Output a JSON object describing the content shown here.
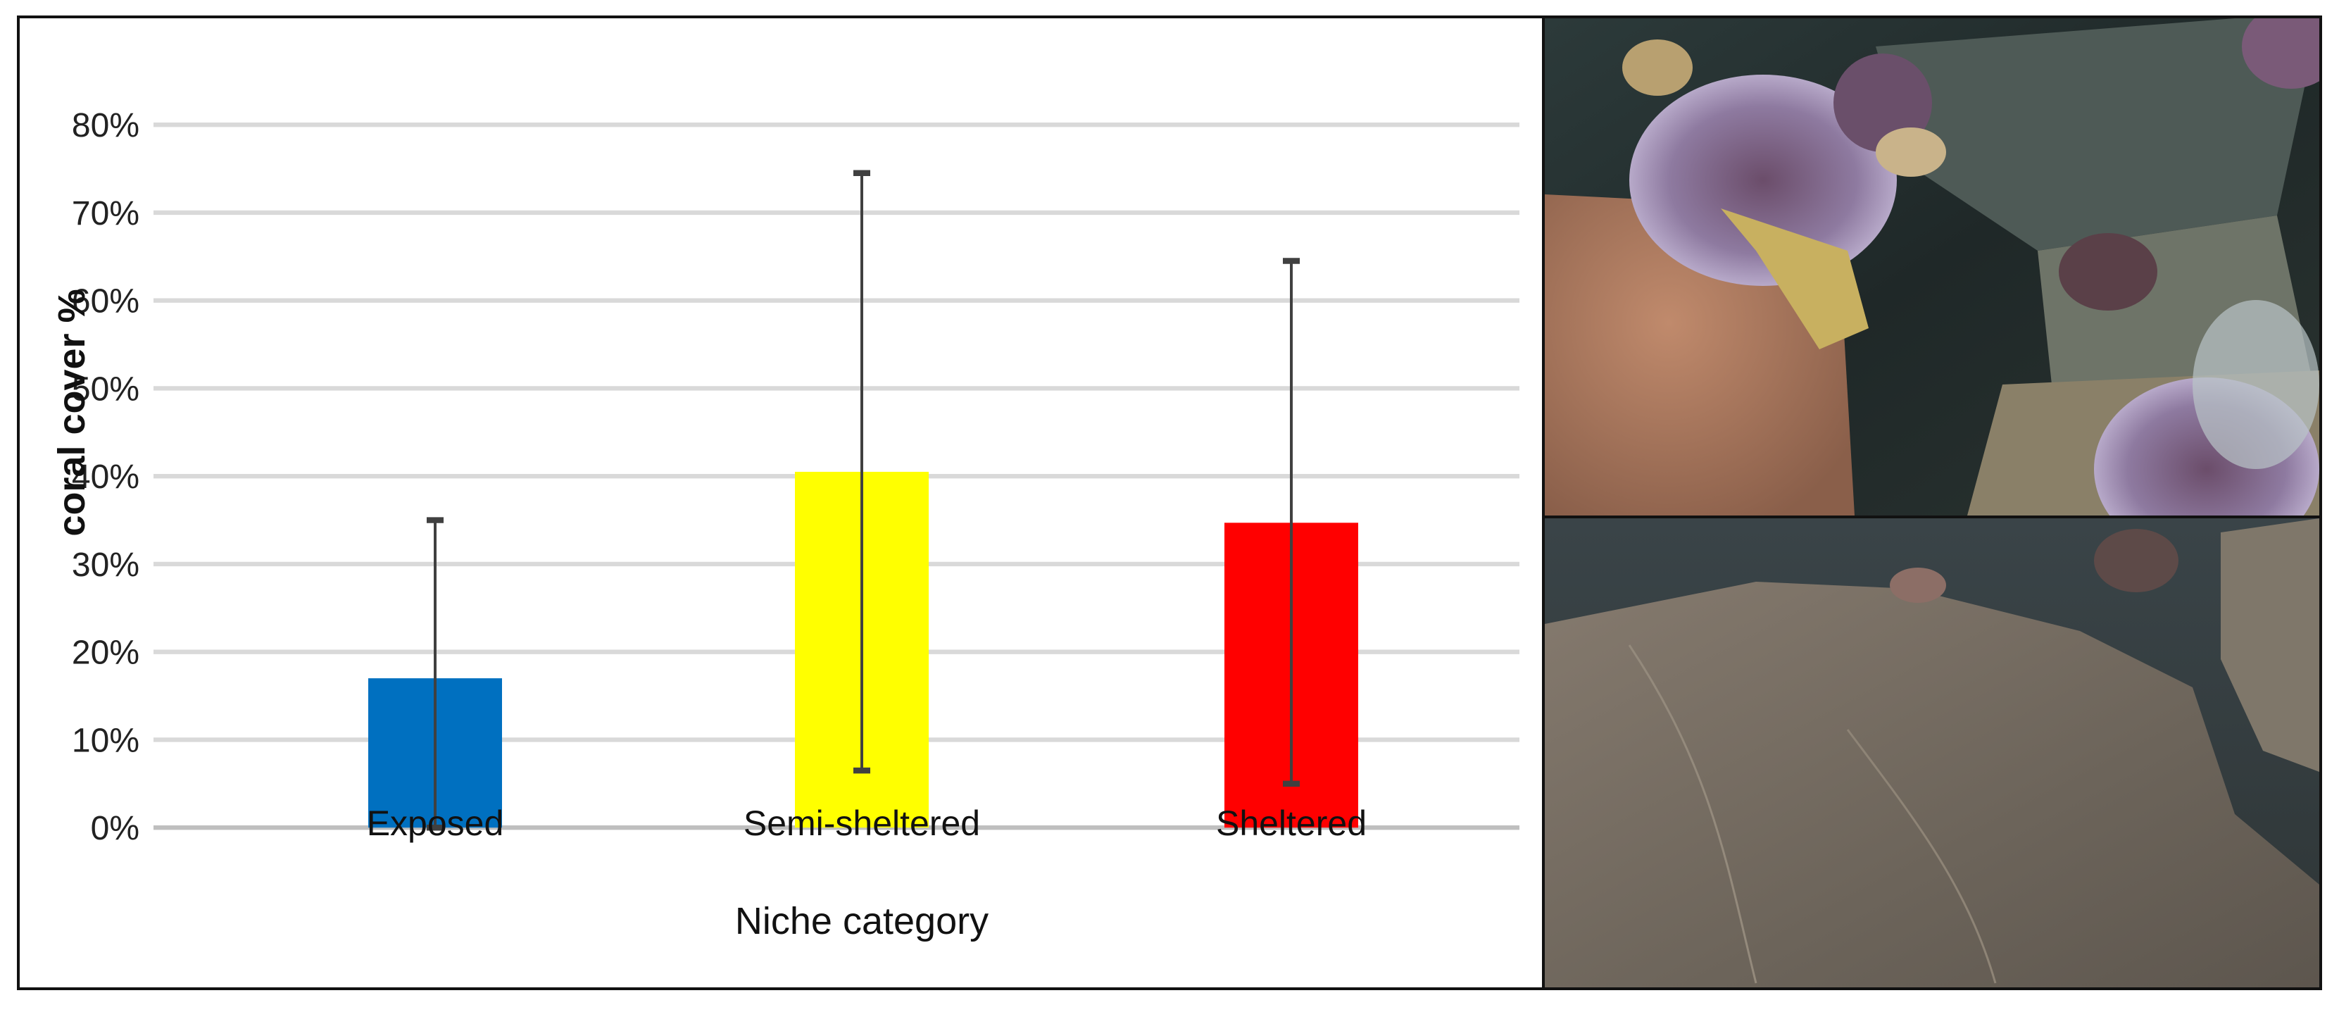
{
  "chart_data": {
    "type": "bar",
    "title": "",
    "xlabel": "Niche category",
    "ylabel": "coral cover %",
    "categories": [
      "Exposed",
      "Semi-sheltered",
      "Sheltered"
    ],
    "values": [
      0.17,
      0.405,
      0.347
    ],
    "error_low": [
      0.0,
      0.065,
      0.05
    ],
    "error_high": [
      0.35,
      0.745,
      0.645
    ],
    "colors": [
      "#0070C0",
      "#FFFF00",
      "#FF0000"
    ],
    "ylim": [
      0,
      0.8
    ],
    "yticks": [
      "0%",
      "10%",
      "20%",
      "30%",
      "40%",
      "50%",
      "60%",
      "70%",
      "80%"
    ],
    "grid": true,
    "legend": "none"
  },
  "photos": {
    "top": "underwater-reef-photo-with-coral",
    "bottom": "underwater-bare-rock-photo"
  }
}
